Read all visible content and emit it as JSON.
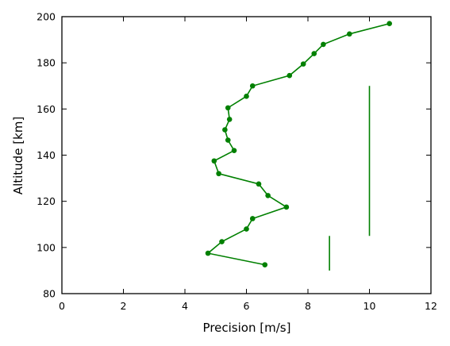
{
  "chart_data": {
    "type": "line",
    "xlabel": "Precision [m/s]",
    "ylabel": "Altitude [km]",
    "xlim": [
      0,
      12
    ],
    "ylim": [
      80,
      200
    ],
    "xticks": [
      "0",
      "2",
      "4",
      "6",
      "8",
      "10",
      "12"
    ],
    "yticks": [
      "80",
      "100",
      "120",
      "140",
      "160",
      "180",
      "200"
    ],
    "grid": false,
    "color": "#008000",
    "series": [
      {
        "style": "line-with-markers",
        "points": [
          [
            6.6,
            92.5
          ],
          [
            4.75,
            97.5
          ],
          [
            5.2,
            102.5
          ],
          [
            6.0,
            108.0
          ],
          [
            6.2,
            112.5
          ],
          [
            7.3,
            117.5
          ],
          [
            6.7,
            122.5
          ],
          [
            6.4,
            127.5
          ],
          [
            5.1,
            132.0
          ],
          [
            4.95,
            137.5
          ],
          [
            5.6,
            142.0
          ],
          [
            5.4,
            146.5
          ],
          [
            5.3,
            151.0
          ],
          [
            5.45,
            155.5
          ],
          [
            5.4,
            160.5
          ],
          [
            6.0,
            165.5
          ],
          [
            6.2,
            170.0
          ],
          [
            7.4,
            174.5
          ],
          [
            7.85,
            179.5
          ],
          [
            8.2,
            184.0
          ],
          [
            8.5,
            188.0
          ],
          [
            9.35,
            192.5
          ],
          [
            10.65,
            197.0
          ]
        ]
      },
      {
        "style": "line",
        "points": [
          [
            8.7,
            90.0
          ],
          [
            8.7,
            105.0
          ]
        ]
      },
      {
        "style": "line",
        "points": [
          [
            10.0,
            105.0
          ],
          [
            10.0,
            170.0
          ]
        ]
      }
    ]
  }
}
